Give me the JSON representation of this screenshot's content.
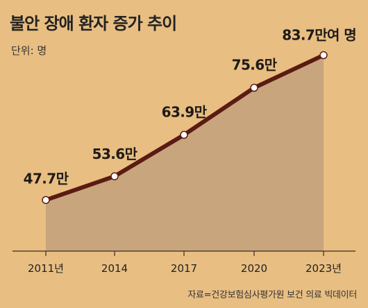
{
  "title": "불안 장애 환자 증가 추이",
  "unit": "단위: 명",
  "source": "자료=건강보험심사평가원 보건 의료 빅데이터",
  "colors": {
    "background": "#e8be82",
    "area": "#c8a57d",
    "line": "#5a1b12",
    "marker_fill": "#ffffff"
  },
  "chart_data": {
    "type": "area",
    "title": "불안 장애 환자 증가 추이",
    "unit": "단위: 명",
    "x": [
      "2011년",
      "2014",
      "2017",
      "2020",
      "2023년"
    ],
    "series": [
      {
        "values": [
          477000,
          536000,
          639000,
          756000,
          837000
        ],
        "data_labels": [
          "47.7만",
          "53.6만",
          "63.9만",
          "75.6만",
          "83.7만여 명"
        ]
      }
    ],
    "ylim": [
      350000,
      900000
    ],
    "grid": false,
    "legend": "none"
  }
}
